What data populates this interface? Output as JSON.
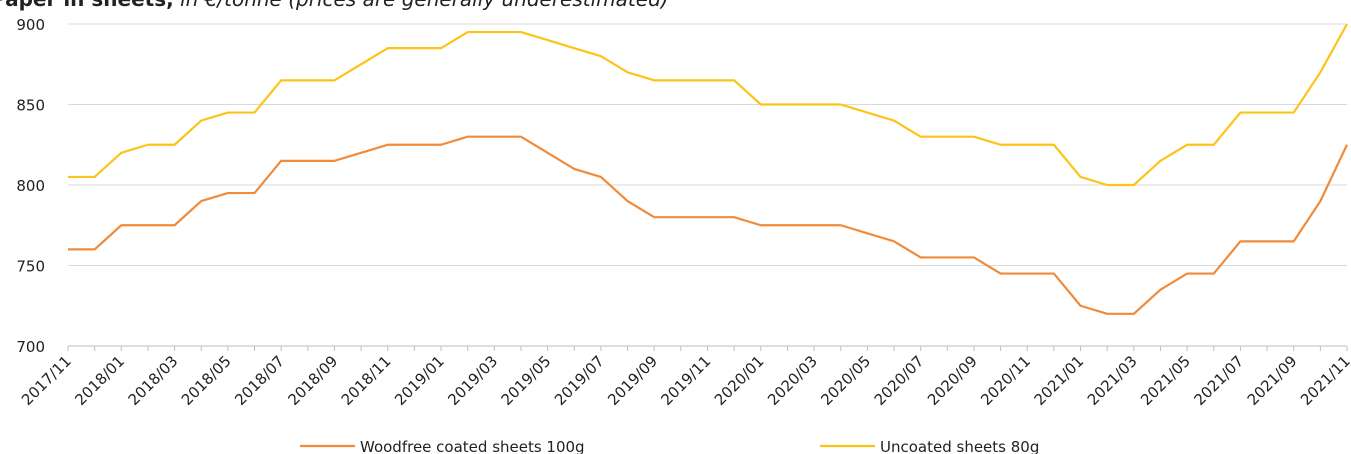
{
  "chart_data": {
    "type": "line",
    "title": "Paper in sheets,",
    "subtitle": "in €/tonne (prices are generally underestimated)",
    "categories": [
      "2017/11",
      null,
      "2018/01",
      null,
      "2018/03",
      null,
      "2018/05",
      null,
      "2018/07",
      null,
      "2018/09",
      null,
      "2018/11",
      null,
      "2019/01",
      null,
      "2019/03",
      null,
      "2019/05",
      null,
      "2019/07",
      null,
      "2019/09",
      null,
      "2019/11",
      null,
      "2020/01",
      null,
      "2020/03",
      null,
      "2020/05",
      null,
      "2020/07",
      null,
      "2020/09",
      null,
      "2020/11",
      null,
      "2021/01",
      null,
      "2021/03",
      null,
      "2021/05",
      null,
      "2021/07",
      null,
      "2021/09",
      null,
      "2021/11"
    ],
    "series": [
      {
        "name": "Woodfree coated sheets 100g",
        "color": "#ef8b3a",
        "values": [
          760,
          760,
          775,
          775,
          775,
          790,
          795,
          795,
          815,
          815,
          815,
          820,
          825,
          825,
          825,
          830,
          830,
          830,
          820,
          810,
          805,
          790,
          780,
          780,
          780,
          780,
          775,
          775,
          775,
          775,
          770,
          765,
          755,
          755,
          755,
          745,
          745,
          745,
          725,
          720,
          720,
          735,
          745,
          745,
          765,
          765,
          765,
          790,
          825
        ]
      },
      {
        "name": "Uncoated sheets 80g",
        "color": "#fcc419",
        "values": [
          805,
          805,
          820,
          825,
          825,
          840,
          845,
          845,
          865,
          865,
          865,
          875,
          885,
          885,
          885,
          895,
          895,
          895,
          890,
          885,
          880,
          870,
          865,
          865,
          865,
          865,
          850,
          850,
          850,
          850,
          845,
          840,
          830,
          830,
          830,
          825,
          825,
          825,
          805,
          800,
          800,
          815,
          825,
          825,
          845,
          845,
          845,
          870,
          900
        ]
      }
    ],
    "ylim": [
      700,
      900
    ],
    "yticks": [
      700,
      750,
      800,
      850,
      900
    ],
    "grid": true,
    "legend": "bottom"
  }
}
